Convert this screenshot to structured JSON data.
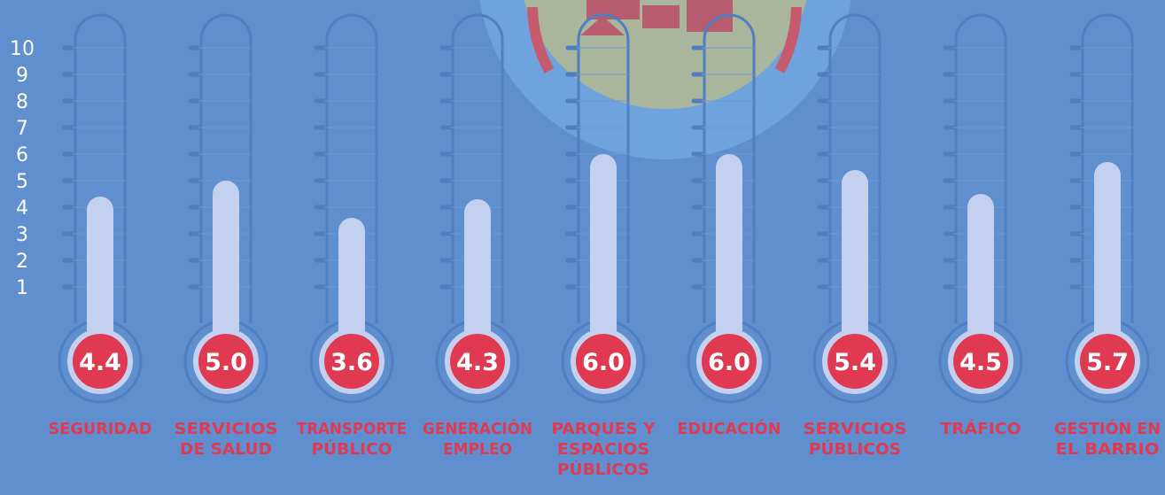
{
  "chart_data": {
    "type": "bar",
    "categories": [
      [
        "SEGURIDAD"
      ],
      [
        "SERVICIOS",
        "DE SALUD"
      ],
      [
        "TRANSPORTE",
        "PÚBLICO"
      ],
      [
        "GENERACIÓN",
        "EMPLEO"
      ],
      [
        "PARQUES Y",
        "ESPACIOS",
        "PÚBLICOS"
      ],
      [
        "EDUCACIÓN"
      ],
      [
        "SERVICIOS",
        "PÚBLICOS"
      ],
      [
        "TRÁFICO"
      ],
      [
        "GESTIÓN EN",
        "EL BARRIO"
      ]
    ],
    "values": [
      4.4,
      5.0,
      3.6,
      4.3,
      6.0,
      6.0,
      5.4,
      4.5,
      5.7
    ],
    "value_labels": [
      "4.4",
      "5.0",
      "3.6",
      "4.3",
      "6.0",
      "6.0",
      "5.4",
      "4.5",
      "5.7"
    ],
    "yticks": [
      "1",
      "2",
      "3",
      "4",
      "5",
      "6",
      "7",
      "8",
      "9",
      "10"
    ],
    "ylim": [
      0,
      10
    ],
    "title": "",
    "xlabel": "",
    "ylabel": "",
    "grid": true,
    "colors": {
      "background": "#5f8fce",
      "tube_outline": "#4f7fc2",
      "mercury": "#c3d0ef",
      "bulb": "#e03a52",
      "category_text": "#e03a52",
      "tick_text": "#ffffff",
      "tick_mark": "#4f7dbf"
    }
  }
}
